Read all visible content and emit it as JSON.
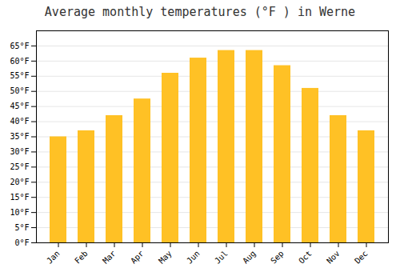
{
  "chart_data": {
    "type": "bar",
    "title": "Average monthly temperatures (°F ) in Werne",
    "categories": [
      "Jan",
      "Feb",
      "Mar",
      "Apr",
      "May",
      "Jun",
      "Jul",
      "Aug",
      "Sep",
      "Oct",
      "Nov",
      "Dec"
    ],
    "values": [
      35,
      37,
      42,
      47.5,
      56,
      61,
      63.5,
      63.5,
      58.5,
      51,
      42,
      37
    ],
    "color": "#FFC125",
    "ylim": [
      0,
      70
    ],
    "yticks": [
      {
        "value": 0,
        "label": "0°F"
      },
      {
        "value": 5,
        "label": "5°F"
      },
      {
        "value": 10,
        "label": "10°F"
      },
      {
        "value": 15,
        "label": "15°F"
      },
      {
        "value": 20,
        "label": "20°F"
      },
      {
        "value": 25,
        "label": "25°F"
      },
      {
        "value": 30,
        "label": "30°F"
      },
      {
        "value": 35,
        "label": "35°F"
      },
      {
        "value": 40,
        "label": "40°F"
      },
      {
        "value": 45,
        "label": "45°F"
      },
      {
        "value": 50,
        "label": "50°F"
      },
      {
        "value": 55,
        "label": "55°F"
      },
      {
        "value": 60,
        "label": "60°F"
      },
      {
        "value": 65,
        "label": "65°F"
      }
    ],
    "grid": true
  }
}
